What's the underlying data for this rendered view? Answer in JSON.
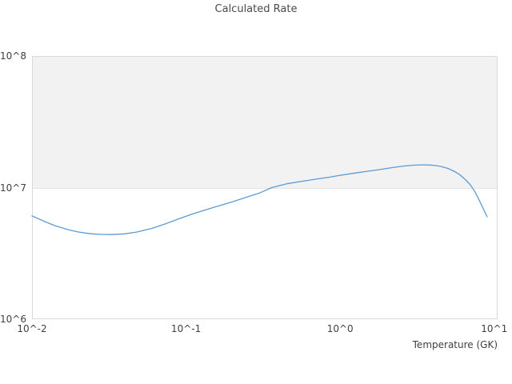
{
  "title": "Calculated Rate",
  "x_axis": {
    "label": "Temperature (GK)"
  },
  "style": {
    "line_color": "#5b9bd5",
    "band_color": "#f2f2f2",
    "grid_color": "#e4e4e4",
    "border_color": "#d9d9d9",
    "title_color": "#4a4a4a",
    "tick_color": "#404040",
    "background_color": "#ffffff"
  },
  "chart_data": {
    "type": "line",
    "title": "Calculated Rate",
    "xlabel": "Temperature (GK)",
    "ylabel": "",
    "x_scale": "log",
    "y_scale": "log",
    "xlim": [
      0.01,
      10.52
    ],
    "ylim": [
      1000000.0,
      100000000.0
    ],
    "grid": "horizontal decade line at 1e7 only, no vertical gridlines",
    "legend": "none",
    "shaded_band": {
      "y_from": 10000000.0,
      "y_to": 100000000.0
    },
    "x_ticks": [
      {
        "value": 0.01,
        "label": "10^-2"
      },
      {
        "value": 0.1,
        "label": "10^-1"
      },
      {
        "value": 1,
        "label": "10^0"
      },
      {
        "value": 10,
        "label": "10^1"
      }
    ],
    "y_ticks": [
      {
        "value": 1000000.0,
        "label": "10^6"
      },
      {
        "value": 10000000.0,
        "label": "10^7"
      },
      {
        "value": 100000000.0,
        "label": "10^8"
      }
    ],
    "series": [
      {
        "name": "Calculated Rate",
        "x": [
          0.01,
          0.012,
          0.014,
          0.017,
          0.02,
          0.024,
          0.028,
          0.033,
          0.04,
          0.048,
          0.06,
          0.075,
          0.09,
          0.11,
          0.135,
          0.165,
          0.2,
          0.25,
          0.3,
          0.36,
          0.45,
          0.55,
          0.7,
          0.85,
          1.0,
          1.25,
          1.5,
          1.8,
          2.2,
          2.6,
          3.0,
          3.5,
          4.0,
          4.5,
          5.0,
          5.5,
          6.0,
          6.5,
          7.0,
          7.5,
          8.0,
          8.5,
          9.0
        ],
        "y": [
          6100000.0,
          5550000.0,
          5150000.0,
          4800000.0,
          4600000.0,
          4460000.0,
          4410000.0,
          4400000.0,
          4450000.0,
          4600000.0,
          4900000.0,
          5350000.0,
          5800000.0,
          6300000.0,
          6800000.0,
          7300000.0,
          7800000.0,
          8500000.0,
          9100000.0,
          10000000.0,
          10700000.0,
          11100000.0,
          11600000.0,
          12000000.0,
          12400000.0,
          12900000.0,
          13300000.0,
          13700000.0,
          14200000.0,
          14600000.0,
          14800000.0,
          14900000.0,
          14800000.0,
          14500000.0,
          14000000.0,
          13300000.0,
          12500000.0,
          11500000.0,
          10500000.0,
          9300000.0,
          8000000.0,
          6900000.0,
          6000000.0
        ]
      }
    ]
  }
}
